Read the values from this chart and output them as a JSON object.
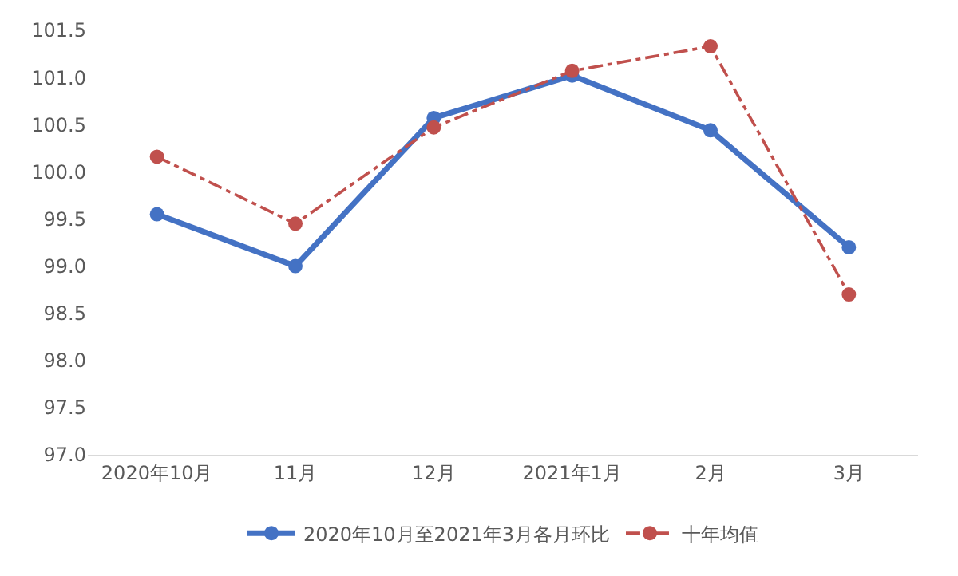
{
  "chart_data": {
    "type": "line",
    "categories": [
      "2020年10月",
      "11月",
      "12月",
      "2021年1月",
      "2月",
      "3月"
    ],
    "series": [
      {
        "name": "2020年10月至2021年3月各月环比",
        "color": "#4472c4",
        "values": [
          99.55,
          99.0,
          100.57,
          101.02,
          100.44,
          99.2
        ],
        "line_style": "solid",
        "marker": "circle"
      },
      {
        "name": "十年均值",
        "color": "#c0504d",
        "values": [
          100.16,
          99.45,
          100.47,
          101.07,
          101.33,
          98.7
        ],
        "line_style": "dashed",
        "marker": "circle"
      }
    ],
    "ylim": [
      97.0,
      101.5
    ],
    "yticks": [
      {
        "value": 97,
        "label": "97.0"
      },
      {
        "value": 97.5,
        "label": "97.5"
      },
      {
        "value": 98,
        "label": "98.0"
      },
      {
        "value": 98.5,
        "label": "98.5"
      },
      {
        "value": 99,
        "label": "99.0"
      },
      {
        "value": 99.5,
        "label": "99.5"
      },
      {
        "value": 100,
        "label": "100.0"
      },
      {
        "value": 100.5,
        "label": "100.5"
      },
      {
        "value": 101,
        "label": "101.0"
      },
      {
        "value": 101.5,
        "label": "101.5"
      }
    ],
    "grid": false,
    "legend": "bottom"
  }
}
